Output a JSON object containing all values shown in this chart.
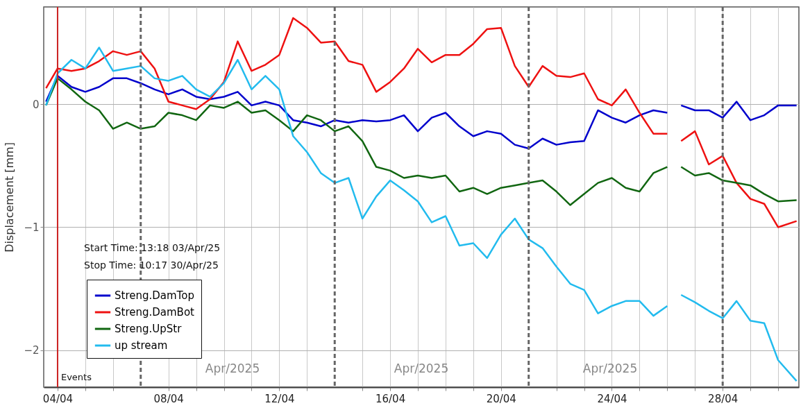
{
  "chart_data": {
    "type": "line",
    "ylabel": "Displacement [mm]",
    "x": [
      "2025-04-03T14:00",
      "2025-04-04T00:00",
      "2025-04-04T12:00",
      "2025-04-05T00:00",
      "2025-04-05T12:00",
      "2025-04-06T00:00",
      "2025-04-06T12:00",
      "2025-04-07T00:00",
      "2025-04-07T12:00",
      "2025-04-08T00:00",
      "2025-04-08T12:00",
      "2025-04-09T00:00",
      "2025-04-09T12:00",
      "2025-04-10T00:00",
      "2025-04-10T12:00",
      "2025-04-11T00:00",
      "2025-04-11T12:00",
      "2025-04-12T00:00",
      "2025-04-12T12:00",
      "2025-04-13T00:00",
      "2025-04-13T12:00",
      "2025-04-14T00:00",
      "2025-04-14T12:00",
      "2025-04-15T00:00",
      "2025-04-15T12:00",
      "2025-04-16T00:00",
      "2025-04-16T12:00",
      "2025-04-17T00:00",
      "2025-04-17T12:00",
      "2025-04-18T00:00",
      "2025-04-18T12:00",
      "2025-04-19T00:00",
      "2025-04-19T12:00",
      "2025-04-20T00:00",
      "2025-04-20T12:00",
      "2025-04-21T00:00",
      "2025-04-21T12:00",
      "2025-04-22T00:00",
      "2025-04-22T12:00",
      "2025-04-23T00:00",
      "2025-04-23T12:00",
      "2025-04-24T00:00",
      "2025-04-24T12:00",
      "2025-04-25T00:00",
      "2025-04-25T12:00",
      "2025-04-26T00:00",
      "2025-04-26T06:00",
      "2025-04-26T12:00",
      "2025-04-27T00:00",
      "2025-04-27T12:00",
      "2025-04-28T00:00",
      "2025-04-28T12:00",
      "2025-04-29T00:00",
      "2025-04-29T12:00",
      "2025-04-30T00:00",
      "2025-04-30T16:00"
    ],
    "series": [
      {
        "name": "Streng.DamTop",
        "color": "#0000cc",
        "values": [
          0.02,
          0.23,
          0.14,
          0.1,
          0.14,
          0.21,
          0.21,
          0.17,
          0.12,
          0.08,
          0.12,
          0.06,
          0.04,
          0.06,
          0.1,
          -0.01,
          0.02,
          -0.01,
          -0.13,
          -0.15,
          -0.18,
          -0.13,
          -0.15,
          -0.13,
          -0.14,
          -0.13,
          -0.09,
          -0.22,
          -0.11,
          -0.07,
          -0.18,
          -0.26,
          -0.22,
          -0.24,
          -0.33,
          -0.36,
          -0.28,
          -0.33,
          -0.31,
          -0.3,
          -0.05,
          -0.11,
          -0.15,
          -0.09,
          -0.05,
          -0.07,
          null,
          -0.01,
          -0.05,
          -0.05,
          -0.11,
          0.02,
          -0.13,
          -0.09,
          -0.01,
          -0.01
        ]
      },
      {
        "name": "Streng.DamBot",
        "color": "#ee1111",
        "values": [
          0.13,
          0.29,
          0.27,
          0.29,
          0.35,
          0.43,
          0.4,
          0.43,
          0.29,
          0.02,
          -0.01,
          -0.04,
          0.04,
          0.18,
          0.51,
          0.27,
          0.32,
          0.4,
          0.7,
          0.62,
          0.5,
          0.51,
          0.35,
          0.32,
          0.1,
          0.18,
          0.29,
          0.45,
          0.34,
          0.4,
          0.4,
          0.49,
          0.61,
          0.62,
          0.31,
          0.14,
          0.31,
          0.23,
          0.22,
          0.25,
          0.04,
          -0.01,
          0.12,
          -0.07,
          -0.24,
          -0.24,
          null,
          -0.3,
          -0.22,
          -0.49,
          -0.42,
          -0.64,
          -0.77,
          -0.81,
          -1.0,
          -0.95
        ]
      },
      {
        "name": "Streng.UpStr",
        "color": "#116611",
        "values": [
          -0.01,
          0.21,
          0.12,
          0.02,
          -0.05,
          -0.2,
          -0.15,
          -0.2,
          -0.18,
          -0.07,
          -0.09,
          -0.13,
          -0.01,
          -0.03,
          0.02,
          -0.07,
          -0.05,
          -0.13,
          -0.22,
          -0.09,
          -0.13,
          -0.22,
          -0.18,
          -0.3,
          -0.51,
          -0.54,
          -0.6,
          -0.58,
          -0.6,
          -0.58,
          -0.71,
          -0.68,
          -0.73,
          -0.68,
          -0.66,
          -0.64,
          -0.62,
          -0.71,
          -0.82,
          -0.73,
          -0.64,
          -0.6,
          -0.68,
          -0.71,
          -0.56,
          -0.51,
          null,
          -0.51,
          -0.58,
          -0.56,
          -0.62,
          -0.64,
          -0.66,
          -0.73,
          -0.79,
          -0.78
        ]
      },
      {
        "name": "up stream",
        "color": "#22bbee",
        "values": [
          -0.01,
          0.25,
          0.36,
          0.29,
          0.46,
          0.27,
          0.29,
          0.31,
          0.21,
          0.19,
          0.23,
          0.12,
          0.06,
          0.17,
          0.36,
          0.12,
          0.23,
          0.12,
          -0.26,
          -0.39,
          -0.56,
          -0.64,
          -0.6,
          -0.93,
          -0.75,
          -0.62,
          -0.7,
          -0.79,
          -0.96,
          -0.91,
          -1.15,
          -1.13,
          -1.25,
          -1.06,
          -0.93,
          -1.1,
          -1.17,
          -1.32,
          -1.46,
          -1.51,
          -1.7,
          -1.64,
          -1.6,
          -1.6,
          -1.72,
          -1.64,
          null,
          -1.55,
          -1.61,
          -1.68,
          -1.74,
          -1.6,
          -1.76,
          -1.78,
          -2.08,
          -2.25
        ]
      }
    ],
    "xlim": [
      "2025-04-03T12:00",
      "2025-04-30T18:00"
    ],
    "xticks": [
      {
        "value": "2025-04-04T00:00",
        "label": "04/04"
      },
      {
        "value": "2025-04-05T00:00",
        "label": null
      },
      {
        "value": "2025-04-06T00:00",
        "label": null
      },
      {
        "value": "2025-04-08T00:00",
        "label": "08/04"
      },
      {
        "value": "2025-04-09T00:00",
        "label": null
      },
      {
        "value": "2025-04-10T00:00",
        "label": null
      },
      {
        "value": "2025-04-11T00:00",
        "label": null
      },
      {
        "value": "2025-04-12T00:00",
        "label": "12/04"
      },
      {
        "value": "2025-04-13T00:00",
        "label": null
      },
      {
        "value": "2025-04-15T00:00",
        "label": null
      },
      {
        "value": "2025-04-16T00:00",
        "label": "16/04"
      },
      {
        "value": "2025-04-17T00:00",
        "label": null
      },
      {
        "value": "2025-04-18T00:00",
        "label": null
      },
      {
        "value": "2025-04-19T00:00",
        "label": null
      },
      {
        "value": "2025-04-20T00:00",
        "label": "20/04"
      },
      {
        "value": "2025-04-22T00:00",
        "label": null
      },
      {
        "value": "2025-04-23T00:00",
        "label": null
      },
      {
        "value": "2025-04-24T00:00",
        "label": "24/04"
      },
      {
        "value": "2025-04-25T00:00",
        "label": null
      },
      {
        "value": "2025-04-26T00:00",
        "label": null
      },
      {
        "value": "2025-04-27T00:00",
        "label": null
      },
      {
        "value": "2025-04-28T00:00",
        "label": "28/04"
      },
      {
        "value": "2025-04-29T00:00",
        "label": null
      },
      {
        "value": "2025-04-30T00:00",
        "label": null
      }
    ],
    "ylim": [
      -2.3,
      0.79
    ],
    "yticks": [
      0,
      -1,
      -2
    ],
    "grid": true,
    "legend": "bottom left",
    "line_style": "solid",
    "ref_lines": [
      {
        "axis": "x",
        "value": "2025-04-04T00:00",
        "label": "Events",
        "color": "#cc2222",
        "line_style": "solid"
      },
      {
        "axis": "x",
        "value": "2025-04-07T00:00",
        "color": "#666666",
        "line_style": "dashed"
      },
      {
        "axis": "x",
        "value": "2025-04-14T00:00",
        "color": "#666666",
        "line_style": "dashed"
      },
      {
        "axis": "x",
        "value": "2025-04-21T00:00",
        "color": "#666666",
        "line_style": "dashed"
      },
      {
        "axis": "x",
        "value": "2025-04-28T00:00",
        "color": "#666666",
        "line_style": "dashed"
      }
    ],
    "annotations": [
      "Start Time: 13:18 03/Apr/25",
      "Stop Time: 10:17 30/Apr/25",
      "Apr/2025",
      "Apr/2025",
      "Apr/2025"
    ]
  }
}
